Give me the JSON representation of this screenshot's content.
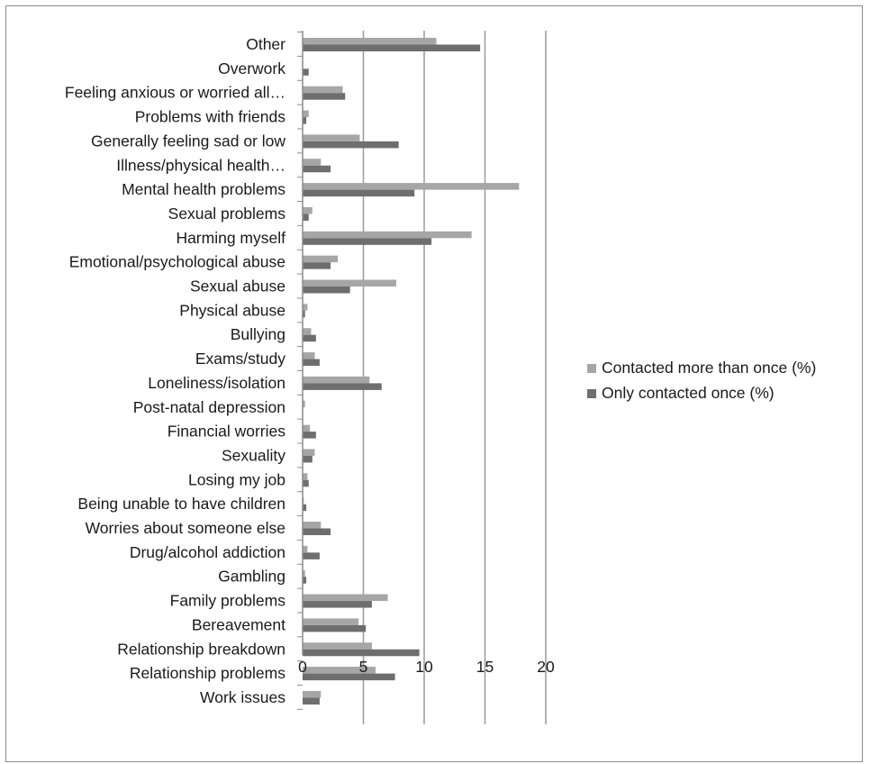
{
  "chart_data": {
    "type": "bar",
    "orientation": "horizontal",
    "categories": [
      "Other",
      "Overwork",
      "Feeling anxious or worried all…",
      "Problems with friends",
      "Generally feeling sad or low",
      "Illness/physical health…",
      "Mental health problems",
      "Sexual problems",
      "Harming myself",
      "Emotional/psychological abuse",
      "Sexual abuse",
      "Physical abuse",
      "Bullying",
      "Exams/study",
      "Loneliness/isolation",
      "Post-natal depression",
      "Financial worries",
      "Sexuality",
      "Losing my job",
      "Being unable to have children",
      "Worries about someone else",
      "Drug/alcohol addiction",
      "Gambling",
      "Family problems",
      "Bereavement",
      "Relationship breakdown",
      "Relationship problems",
      "Work issues"
    ],
    "series": [
      {
        "name": "Contacted more than once (%)",
        "color": "#a6a6a6",
        "values": [
          11.0,
          0.0,
          3.3,
          0.5,
          4.7,
          1.5,
          17.8,
          0.8,
          13.9,
          2.9,
          7.7,
          0.4,
          0.7,
          1.0,
          5.5,
          0.2,
          0.6,
          1.0,
          0.4,
          0.1,
          1.5,
          0.4,
          0.2,
          7.0,
          4.6,
          5.7,
          6.0,
          1.5
        ]
      },
      {
        "name": "Only contacted once (%)",
        "color": "#6e6e6e",
        "values": [
          14.6,
          0.5,
          3.5,
          0.3,
          7.9,
          2.3,
          9.2,
          0.5,
          10.6,
          2.3,
          3.9,
          0.2,
          1.1,
          1.4,
          6.5,
          0.0,
          1.1,
          0.8,
          0.5,
          0.3,
          2.3,
          1.4,
          0.3,
          5.7,
          5.2,
          9.6,
          7.6,
          1.4
        ]
      }
    ],
    "xlim": [
      0,
      20
    ],
    "xticks": [
      "0",
      "5",
      "10",
      "15",
      "20"
    ],
    "xlabel": "",
    "ylabel": "",
    "title": "",
    "grid": "vertical",
    "legend_position": "right"
  }
}
